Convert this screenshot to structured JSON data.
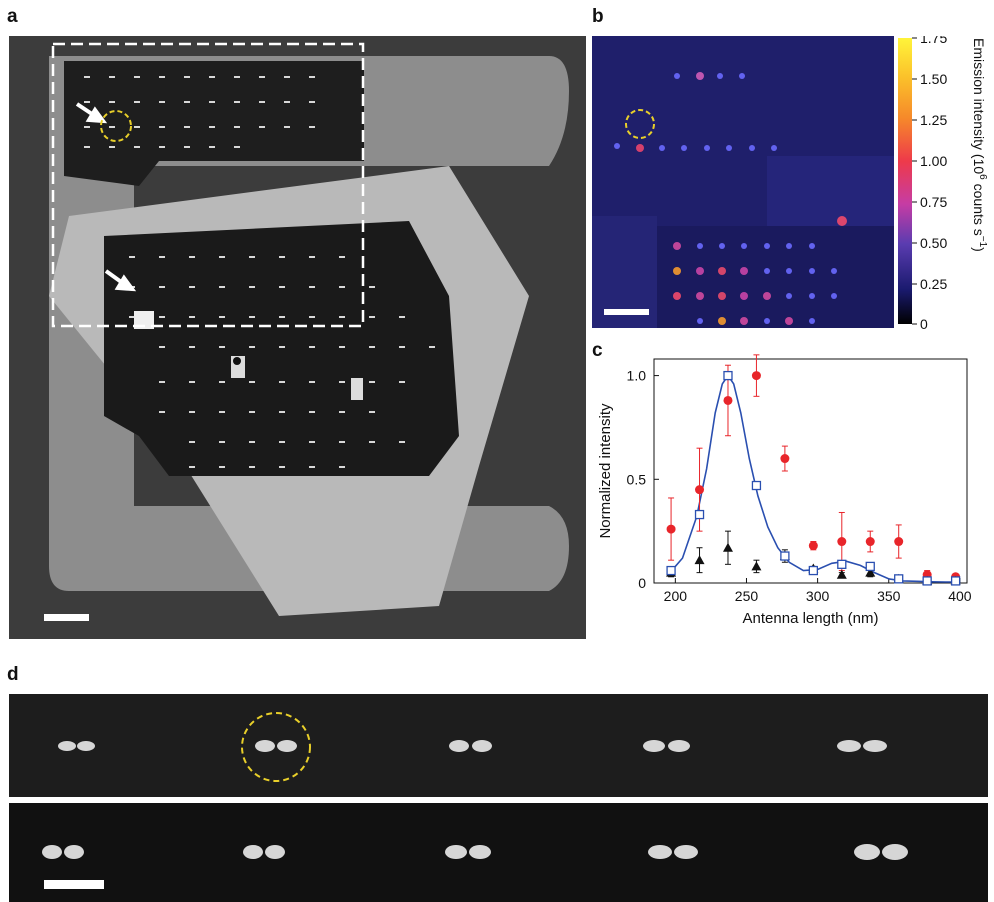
{
  "panels": {
    "a": {
      "label": "a"
    },
    "b": {
      "label": "b",
      "colorbar": {
        "ticks": [
          "1.75",
          "1.50",
          "1.25",
          "1.00",
          "0.75",
          "0.50",
          "0.25",
          "0"
        ],
        "title_main": "Emission intensity (10",
        "title_sup": "6",
        "title_rest": " counts s",
        "title_sup2": "−1",
        "title_end": ")"
      }
    },
    "c": {
      "label": "c"
    },
    "d": {
      "label": "d"
    }
  },
  "chart_data": {
    "type": "scatter",
    "xlabel": "Antenna length (nm)",
    "ylabel": "Normalized intensity",
    "xlim": [
      185,
      405
    ],
    "ylim": [
      0,
      1.08
    ],
    "xticks": [
      "200",
      "250",
      "300",
      "350",
      "400"
    ],
    "yticks": [
      "0",
      "0.5",
      "1.0"
    ],
    "series": [
      {
        "marker": "circle",
        "color": "#e8252a",
        "x": [
          197,
          217,
          237,
          257,
          277,
          297,
          317,
          337,
          357,
          377,
          397
        ],
        "y": [
          0.26,
          0.45,
          0.88,
          1.0,
          0.6,
          0.18,
          0.2,
          0.2,
          0.2,
          0.04,
          0.03
        ],
        "err": [
          0.15,
          0.2,
          0.17,
          0.1,
          0.06,
          0.02,
          0.14,
          0.05,
          0.08,
          0.02,
          0.01
        ]
      },
      {
        "marker": "triangle",
        "color": "#111111",
        "x": [
          197,
          217,
          237,
          257,
          277,
          297,
          317,
          337,
          357,
          377,
          397
        ],
        "y": [
          0.05,
          0.11,
          0.17,
          0.08,
          0.13,
          0.07,
          0.04,
          0.05,
          0.02,
          0.01,
          0.01
        ],
        "err": [
          0.02,
          0.06,
          0.08,
          0.03,
          0.03,
          0.01,
          0.01,
          0.02,
          0.01,
          0.01,
          0.01
        ]
      },
      {
        "marker": "square",
        "color": "#2a4fb0",
        "x": [
          197,
          217,
          237,
          257,
          277,
          297,
          317,
          337,
          357,
          377,
          397
        ],
        "y": [
          0.06,
          0.33,
          1.0,
          0.47,
          0.13,
          0.06,
          0.09,
          0.08,
          0.02,
          0.01,
          0.01
        ]
      }
    ],
    "fit_curve": {
      "color": "#2a4fb0",
      "x": [
        195,
        205,
        215,
        222,
        228,
        233,
        237,
        241,
        246,
        252,
        258,
        265,
        272,
        280,
        290,
        300,
        310,
        320,
        330,
        340,
        350,
        360,
        370,
        380,
        390,
        398
      ],
      "y": [
        0.04,
        0.12,
        0.32,
        0.55,
        0.82,
        0.96,
        1.0,
        0.96,
        0.82,
        0.6,
        0.42,
        0.27,
        0.17,
        0.1,
        0.06,
        0.065,
        0.095,
        0.105,
        0.085,
        0.05,
        0.02,
        0.01,
        0.008,
        0.006,
        0.005,
        0.005
      ]
    }
  }
}
